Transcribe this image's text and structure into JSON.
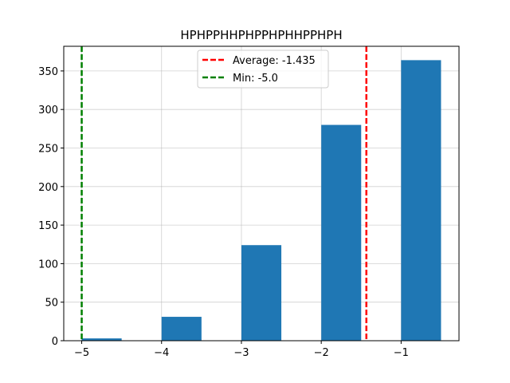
{
  "chart_data": {
    "type": "bar",
    "title": "HPHPPHHPHPPHPHHPPHPH",
    "xlabel": "",
    "ylabel": "",
    "xlim": [
      -5.225,
      -0.275
    ],
    "ylim": [
      0,
      382
    ],
    "xticks": [
      -5,
      -4,
      -3,
      -2,
      -1
    ],
    "xtick_labels": [
      "−5",
      "−4",
      "−3",
      "−2",
      "−1"
    ],
    "yticks": [
      0,
      50,
      100,
      150,
      200,
      250,
      300,
      350
    ],
    "ytick_labels": [
      "0",
      "50",
      "100",
      "150",
      "200",
      "250",
      "300",
      "350"
    ],
    "grid": true,
    "bars": [
      {
        "x0": -5.0,
        "x1": -4.5,
        "value": 3
      },
      {
        "x0": -4.0,
        "x1": -3.5,
        "value": 31
      },
      {
        "x0": -3.0,
        "x1": -2.5,
        "value": 124
      },
      {
        "x0": -2.0,
        "x1": -1.5,
        "value": 280
      },
      {
        "x0": -1.0,
        "x1": -0.5,
        "value": 364
      }
    ],
    "bar_color": "#1f77b4",
    "lines": [
      {
        "x": -1.435,
        "label": "Average: -1.435",
        "color": "#ff0000"
      },
      {
        "x": -5.0,
        "label": "Min: -5.0",
        "color": "#008000"
      }
    ],
    "legend_position": "top-center"
  }
}
